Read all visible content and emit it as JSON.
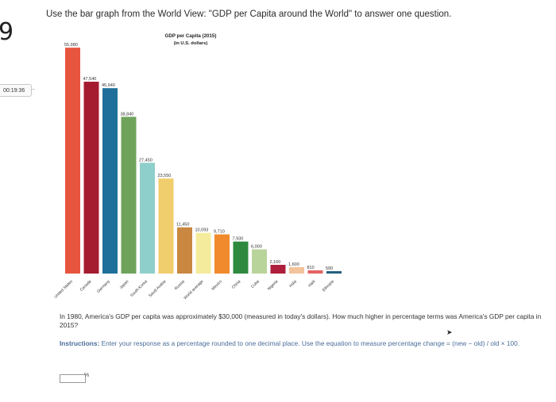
{
  "question_number": "9",
  "timer": "00:19:36",
  "prompt": "Use the bar graph from the World View: \"GDP per Capita around the World\" to answer one question.",
  "question_text": "In 1980, America's GDP per capita was approximately $30,000 (measured in today's dollars). How much higher in percentage terms was America's GDP per capita in 2015?",
  "instructions_label": "Instructions:",
  "instructions_text": "Enter your response as a percentage rounded to one decimal place. Use the equation to measure percentage change = (new − old) / old × 100.",
  "answer_value": "",
  "answer_unit": "%",
  "chart_data": {
    "type": "bar",
    "title": "GDP per Capita (2015)",
    "subtitle": "(in U.S. dollars)",
    "categories": [
      "United States",
      "Canada",
      "Germany",
      "Japan",
      "South Korea",
      "Saudi Arabia",
      "Russia",
      "World average",
      "Mexico",
      "China",
      "Cuba",
      "Nigeria",
      "India",
      "Haiti",
      "Ethiopia"
    ],
    "values": [
      55980,
      47540,
      45940,
      38840,
      27450,
      23550,
      11450,
      10093,
      9710,
      7930,
      6000,
      2160,
      1600,
      810,
      590
    ],
    "value_labels": [
      "55,980",
      "47,540",
      "45,940",
      "38,840",
      "27,450",
      "23,550",
      "11,450",
      "10,093",
      "9,710",
      "7,930",
      "6,000",
      "2,160",
      "1,600",
      "810",
      "590"
    ],
    "colors": [
      "#e8553f",
      "#a51c30",
      "#1f6f9a",
      "#6fa35b",
      "#8fcfcb",
      "#f0cd6d",
      "#c9873f",
      "#f4ec9c",
      "#f08a2c",
      "#2e8a3e",
      "#b9d49a",
      "#ad1f3b",
      "#f3c39b",
      "#e36464",
      "#245f82"
    ],
    "ylim": [
      0,
      56000
    ],
    "grid": false,
    "legend": "none"
  }
}
